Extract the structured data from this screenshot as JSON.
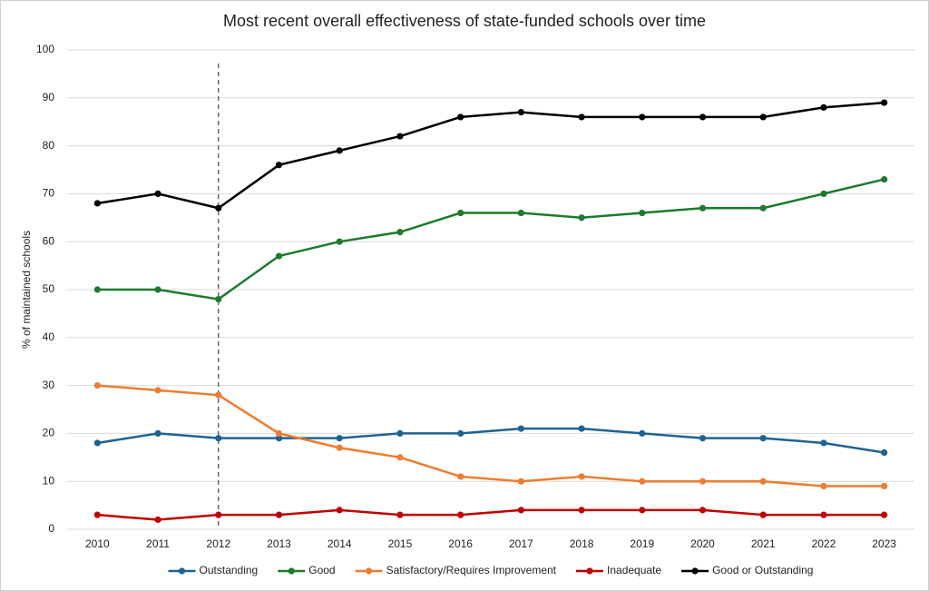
{
  "chart_data": {
    "type": "line",
    "title": "Most recent overall effectiveness of state-funded schools over time",
    "y_label": "% of maintained schools",
    "categories": [
      "2010",
      "2011",
      "2012",
      "2013",
      "2014",
      "2015",
      "2016",
      "2017",
      "2018",
      "2019",
      "2020",
      "2021",
      "2022",
      "2023"
    ],
    "series": [
      {
        "name": "Outstanding",
        "color": "#1f6391",
        "values": [
          18,
          20,
          19,
          19,
          19,
          20,
          20,
          21,
          21,
          20,
          19,
          19,
          18,
          16
        ]
      },
      {
        "name": "Good",
        "color": "#1e7a2e",
        "values": [
          50,
          50,
          48,
          57,
          60,
          62,
          66,
          66,
          65,
          66,
          67,
          67,
          70,
          73
        ]
      },
      {
        "name": "Satisfactory/Requires Improvement",
        "color": "#ed7d31",
        "values": [
          30,
          29,
          28,
          20,
          17,
          15,
          11,
          10,
          11,
          10,
          10,
          10,
          9,
          9
        ]
      },
      {
        "name": "Inadequate",
        "color": "#c00000",
        "values": [
          3,
          2,
          3,
          3,
          4,
          3,
          3,
          4,
          4,
          4,
          4,
          3,
          3,
          3
        ]
      },
      {
        "name": "Good or Outstanding",
        "color": "#000000",
        "values": [
          68,
          70,
          67,
          76,
          79,
          82,
          86,
          87,
          86,
          86,
          86,
          86,
          88,
          89
        ]
      }
    ],
    "ylim": [
      0,
      100
    ],
    "yticks": [
      0,
      10,
      20,
      30,
      40,
      50,
      60,
      70,
      80,
      90,
      100
    ],
    "grid": true,
    "legend": "bottom",
    "vline": "2012"
  }
}
